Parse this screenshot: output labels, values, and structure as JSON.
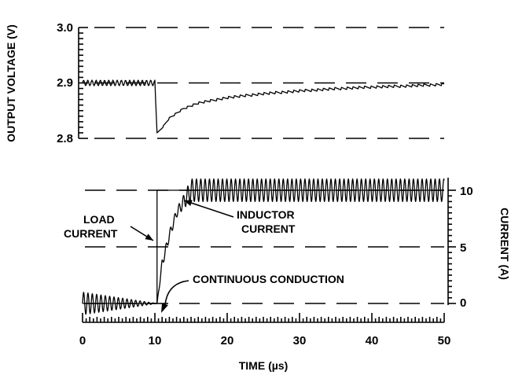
{
  "chart_data": [
    {
      "type": "line",
      "panel": "top",
      "title": "",
      "xlabel": "",
      "ylabel": "OUTPUT VOLTAGE (V)",
      "ylim": [
        2.8,
        3.0
      ],
      "yticks": [
        "3.0",
        "2.9",
        "2.8"
      ],
      "grid_dashed_at": [
        2.8,
        2.9,
        3.0
      ],
      "series": [
        {
          "values_description_only": false,
          "x": [
            0,
            10,
            10.3,
            11,
            12,
            14,
            16,
            20,
            25,
            30,
            35,
            40,
            45,
            50
          ],
          "y": [
            2.9,
            2.9,
            2.81,
            2.82,
            2.838,
            2.856,
            2.866,
            2.876,
            2.883,
            2.888,
            2.892,
            2.895,
            2.897,
            2.9
          ],
          "ripple_amplitude": [
            0.01,
            0.01,
            0.003,
            0.004,
            0.006,
            0.008,
            0.009,
            0.01,
            0.01,
            0.01,
            0.01,
            0.01,
            0.01,
            0.01
          ]
        }
      ]
    },
    {
      "type": "line",
      "panel": "bottom",
      "title": "",
      "xlabel": "TIME (µs)",
      "ylabel": "CURRENT (A)",
      "xlim": [
        0,
        50
      ],
      "ylim": [
        0,
        10
      ],
      "xticks": [
        "0",
        "10",
        "20",
        "30",
        "40",
        "50"
      ],
      "yticks": [
        "10",
        "5",
        "0"
      ],
      "grid_dashed_at": [
        0,
        5,
        10
      ],
      "series": [
        {
          "x": [
            0,
            10.3,
            10.3,
            50
          ],
          "y": [
            0,
            0,
            10,
            10
          ]
        },
        {
          "x": [
            0,
            10.3,
            11,
            12,
            13,
            14,
            15,
            50
          ],
          "y": [
            0,
            0,
            3.5,
            6,
            8,
            9,
            10,
            10
          ],
          "ripple_amplitude": [
            1,
            0,
            0.4,
            0.4,
            0.4,
            0.6,
            1,
            1
          ]
        }
      ],
      "annotations": [
        {
          "text": [
            "LOAD",
            "CURRENT"
          ]
        },
        {
          "text": [
            "INDUCTOR",
            "CURRENT"
          ]
        },
        {
          "text": [
            "CONTINUOUS CONDUCTION"
          ]
        }
      ]
    }
  ]
}
